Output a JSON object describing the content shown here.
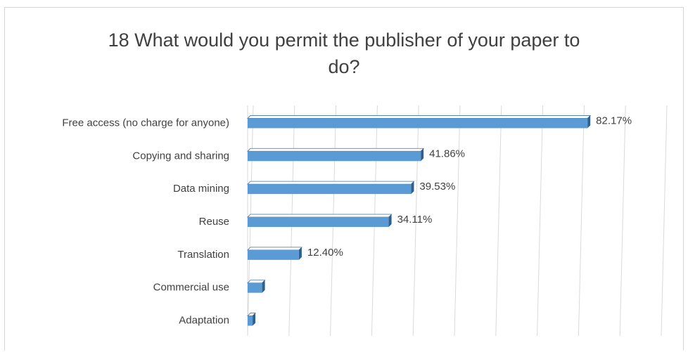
{
  "chart_data": {
    "type": "bar",
    "orientation": "horizontal",
    "title": "18 What would you permit the publisher of your paper to do?",
    "title_lines": [
      "18 What would you permit the publisher of your paper to",
      "do?"
    ],
    "categories": [
      "Free access (no charge for anyone)",
      "Copying and sharing",
      "Data mining",
      "Reuse",
      "Translation",
      "Commercial use",
      "Adaptation"
    ],
    "values": [
      82.17,
      41.86,
      39.53,
      34.11,
      12.4,
      3.5,
      1.2
    ],
    "value_labels": [
      "82.17%",
      "41.86%",
      "39.53%",
      "34.11%",
      "12.40%",
      "",
      ""
    ],
    "xlim": [
      0,
      100
    ],
    "grid": true,
    "bar_color": "#5b9bd5",
    "bar_edge_color": "#41719c"
  }
}
